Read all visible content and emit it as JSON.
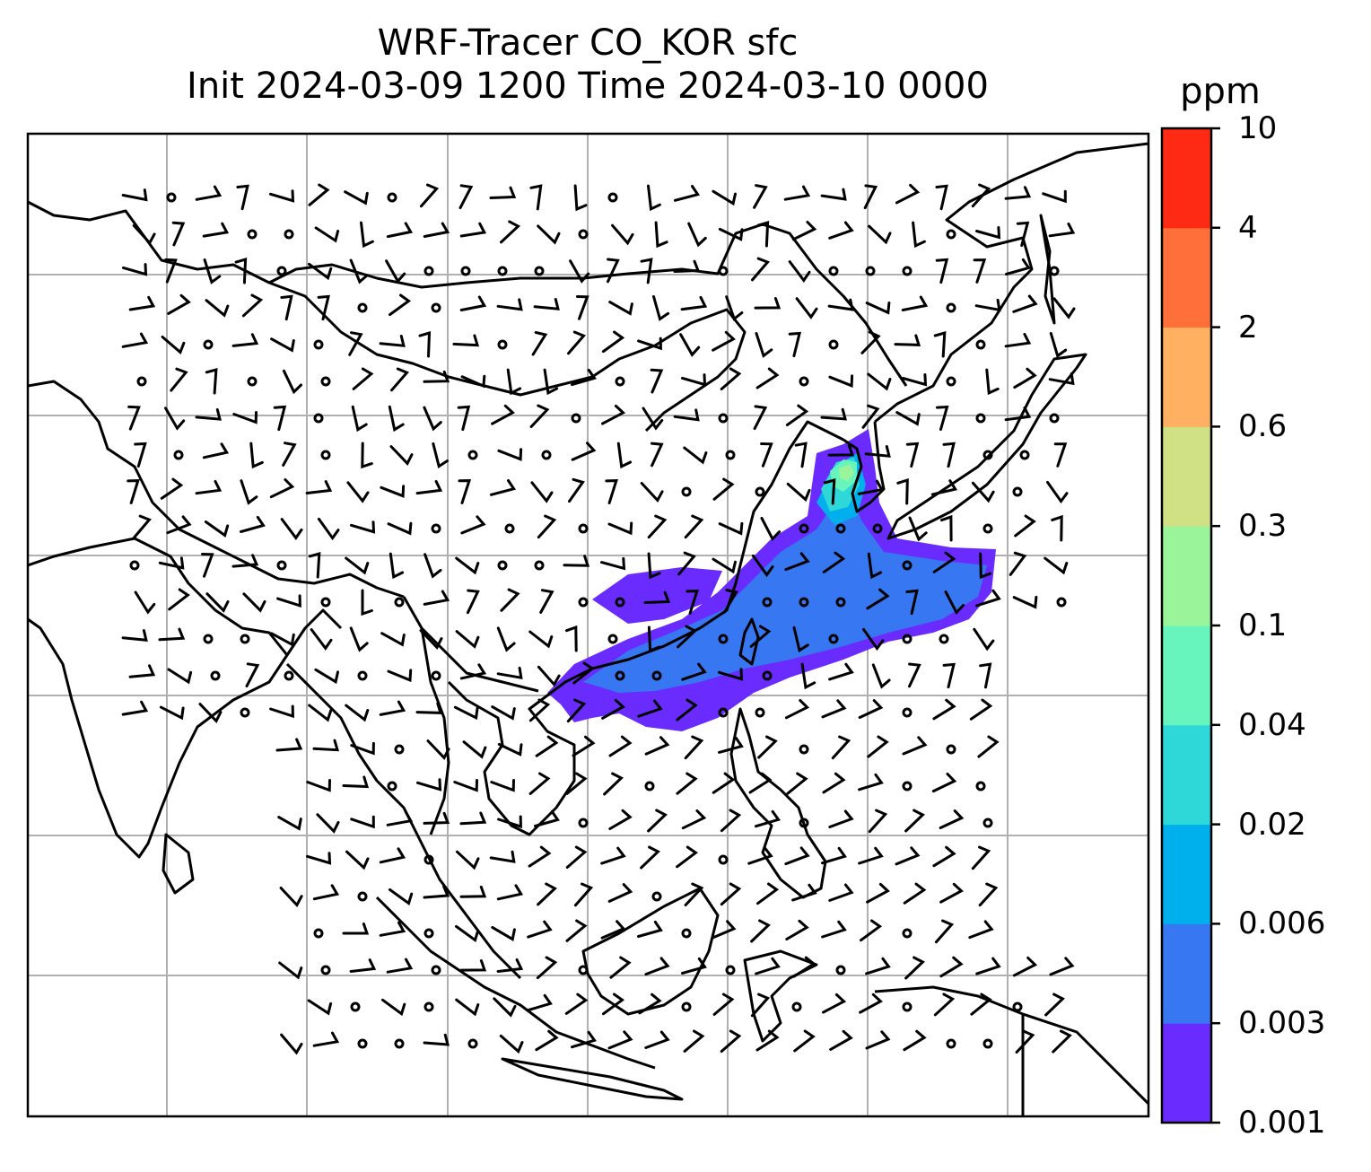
{
  "title": {
    "line1": "WRF-Tracer CO_KOR sfc",
    "line2": "Init 2024-03-09 1200 Time 2024-03-10 0000"
  },
  "colorbar": {
    "unit": "ppm",
    "levels": [
      {
        "label": "0.001",
        "color": "#6a2bff"
      },
      {
        "label": "0.003",
        "color": "#3777f2"
      },
      {
        "label": "0.006",
        "color": "#00b0ec"
      },
      {
        "label": "0.02",
        "color": "#2ed8d8"
      },
      {
        "label": "0.04",
        "color": "#67f5bd"
      },
      {
        "label": "0.1",
        "color": "#9af59a"
      },
      {
        "label": "0.3",
        "color": "#cfe085"
      },
      {
        "label": "0.6",
        "color": "#ffb060"
      },
      {
        "label": "2",
        "color": "#ff6f3a"
      },
      {
        "label": "4",
        "color": "#ff2a14"
      },
      {
        "label": "10",
        "color": ""
      }
    ]
  },
  "map": {
    "gridlines": true,
    "coastlines": true,
    "wind_barbs": true,
    "plume_color_low": "#6a2bff",
    "plume_color_mid": "#3777f2",
    "plume_color_high": "#67f5bd"
  }
}
